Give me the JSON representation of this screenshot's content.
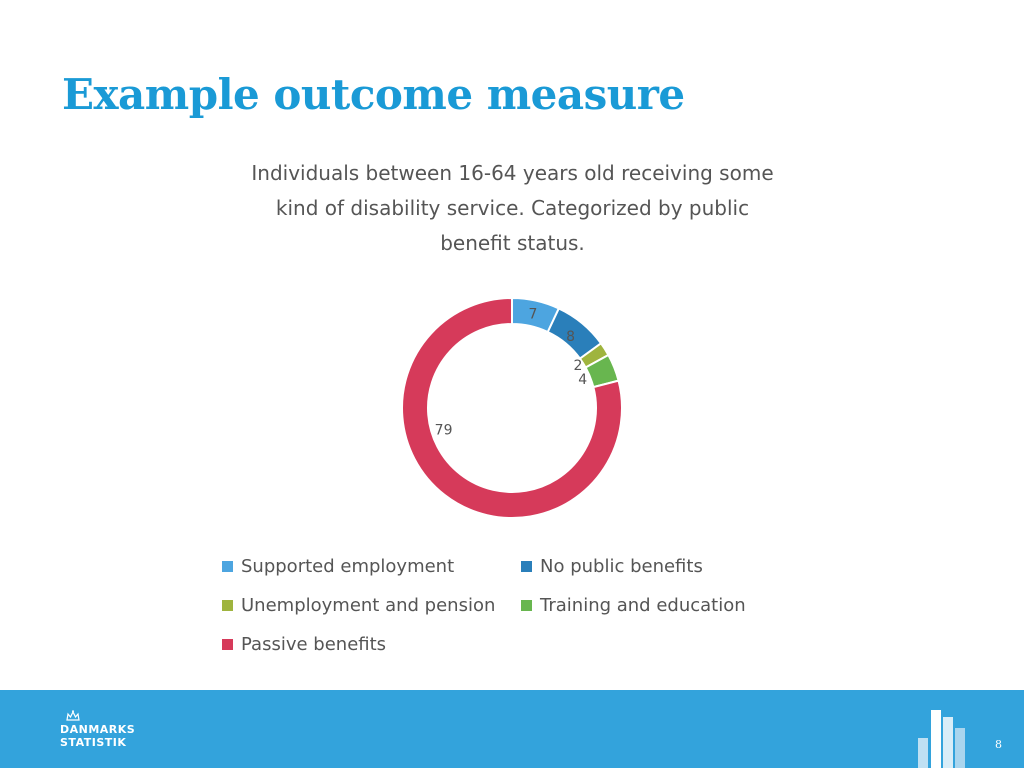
{
  "slide": {
    "title": "Example outcome measure",
    "page_number": "8"
  },
  "chart_data": {
    "type": "pie",
    "subtype": "donut",
    "title": "Individuals between 16-64 years old receiving some kind of disability service. Categorized by public benefit status.",
    "categories": [
      "Supported employment",
      "No public benefits",
      "Unemployment and pension",
      "Training and education",
      "Passive benefits"
    ],
    "values": [
      7,
      8,
      2,
      4,
      79
    ],
    "colors": [
      "#4da5e0",
      "#2a7fba",
      "#9fb43e",
      "#68b64f",
      "#d63a5a"
    ],
    "data_labels": [
      "7",
      "8",
      "2",
      "4",
      "79"
    ],
    "legend_position": "bottom"
  },
  "footer": {
    "logo_line1": "DANMARKS",
    "logo_line2": "STATISTIK",
    "background": "#33a3dc"
  }
}
